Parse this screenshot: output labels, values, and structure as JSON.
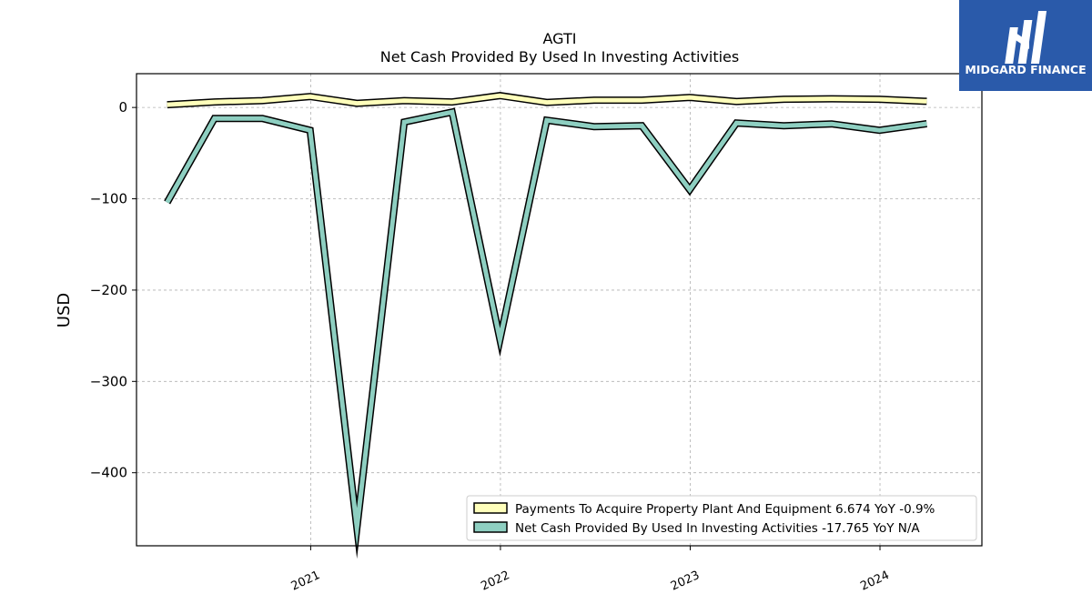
{
  "chart_data": {
    "type": "line",
    "title": "AGTI",
    "subtitle": "Net Cash Provided By Used In Investing Activities",
    "xlabel": "",
    "ylabel": "USD",
    "ylim": [
      -480,
      37
    ],
    "xlim": [
      "2020-02-01",
      "2024-07-15"
    ],
    "yticks": [
      0,
      -100,
      -200,
      -300,
      -400
    ],
    "ytick_labels": [
      "0",
      "−100",
      "−200",
      "−300",
      "−400"
    ],
    "xticks": [
      "2021-01-01",
      "2022-01-01",
      "2023-01-01",
      "2024-01-01"
    ],
    "xtick_labels": [
      "2021",
      "2022",
      "2023",
      "2024"
    ],
    "grid": true,
    "legend_position": "lower-right",
    "x": [
      "2020-03-31",
      "2020-06-30",
      "2020-09-30",
      "2020-12-31",
      "2021-03-31",
      "2021-06-30",
      "2021-09-30",
      "2021-12-31",
      "2022-03-31",
      "2022-06-30",
      "2022-09-30",
      "2022-12-31",
      "2023-03-31",
      "2023-06-30",
      "2023-09-30",
      "2023-12-31",
      "2024-03-31"
    ],
    "series": [
      {
        "name": "Payments To Acquire Property Plant And Equipment  6.674 YoY -0.9%",
        "color": "#ffffbb",
        "values": [
          3,
          6,
          7.5,
          12,
          4.5,
          7.5,
          6,
          13,
          5.5,
          8,
          8,
          11,
          6.5,
          9,
          9.5,
          9,
          6.7
        ]
      },
      {
        "name": "Net Cash Provided By Used In Investing Activities  -17.765 YoY N/A",
        "color": "#8ecfc1",
        "values": [
          -104,
          -12,
          -12,
          -25,
          -460,
          -16,
          -5,
          -254,
          -14,
          -21,
          -20,
          -90,
          -17,
          -20,
          -18,
          -25,
          -17.8
        ]
      }
    ]
  },
  "logo": {
    "text": "MIDGARD FINANCE",
    "background": "#2a5aaa"
  }
}
